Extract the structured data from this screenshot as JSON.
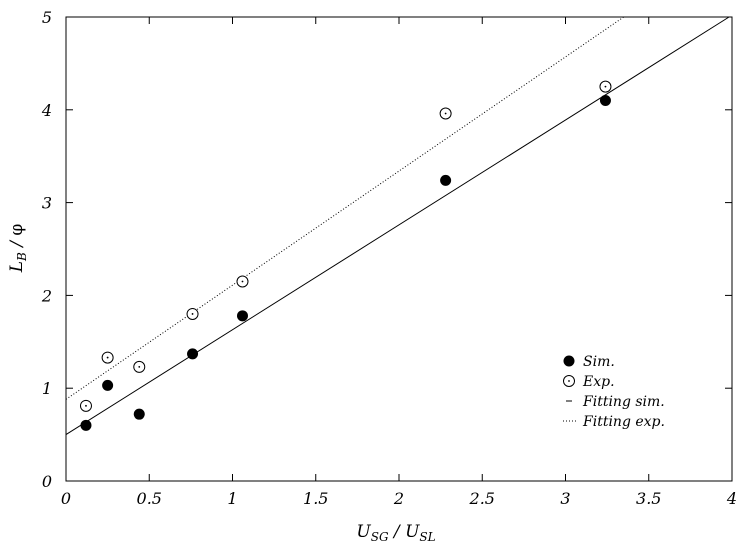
{
  "chart_data": {
    "type": "scatter",
    "title": "",
    "xlabel": {
      "main": "U",
      "sub1": "SG",
      "sep": " / ",
      "main2": "U",
      "sub2": "SL"
    },
    "ylabel": {
      "main": "L",
      "sub": "B",
      "sep": " / ",
      "tail": "φ"
    },
    "xlim": [
      0,
      4
    ],
    "ylim": [
      0,
      5
    ],
    "xticks": [
      0,
      0.5,
      1,
      1.5,
      2,
      2.5,
      3,
      3.5,
      4
    ],
    "xtick_labels": [
      "0",
      "0.5",
      "1",
      "1.5",
      "2",
      "2.5",
      "3",
      "3.5",
      "4"
    ],
    "yticks": [
      0,
      1,
      2,
      3,
      4,
      5
    ],
    "ytick_labels": [
      "0",
      "1",
      "2",
      "3",
      "4",
      "5"
    ],
    "grid": false,
    "legend_position": "bottom-right",
    "series": [
      {
        "name": "Sim.",
        "marker": "filled-circle",
        "x": [
          0.12,
          0.25,
          0.44,
          0.76,
          1.06,
          2.28,
          3.24
        ],
        "y": [
          0.6,
          1.03,
          0.72,
          1.37,
          1.78,
          3.24,
          4.1
        ]
      },
      {
        "name": "Exp.",
        "marker": "open-circle-dot",
        "x": [
          0.12,
          0.25,
          0.44,
          0.76,
          1.06,
          2.28,
          3.24
        ],
        "y": [
          0.81,
          1.33,
          1.23,
          1.8,
          2.15,
          3.96,
          4.25
        ]
      }
    ],
    "fits": [
      {
        "name": "Fitting sim.",
        "style": "solid",
        "intercept": 0.5,
        "slope": 1.13
      },
      {
        "name": "Fitting exp.",
        "style": "dotted",
        "intercept": 0.88,
        "slope": 1.23
      }
    ]
  }
}
